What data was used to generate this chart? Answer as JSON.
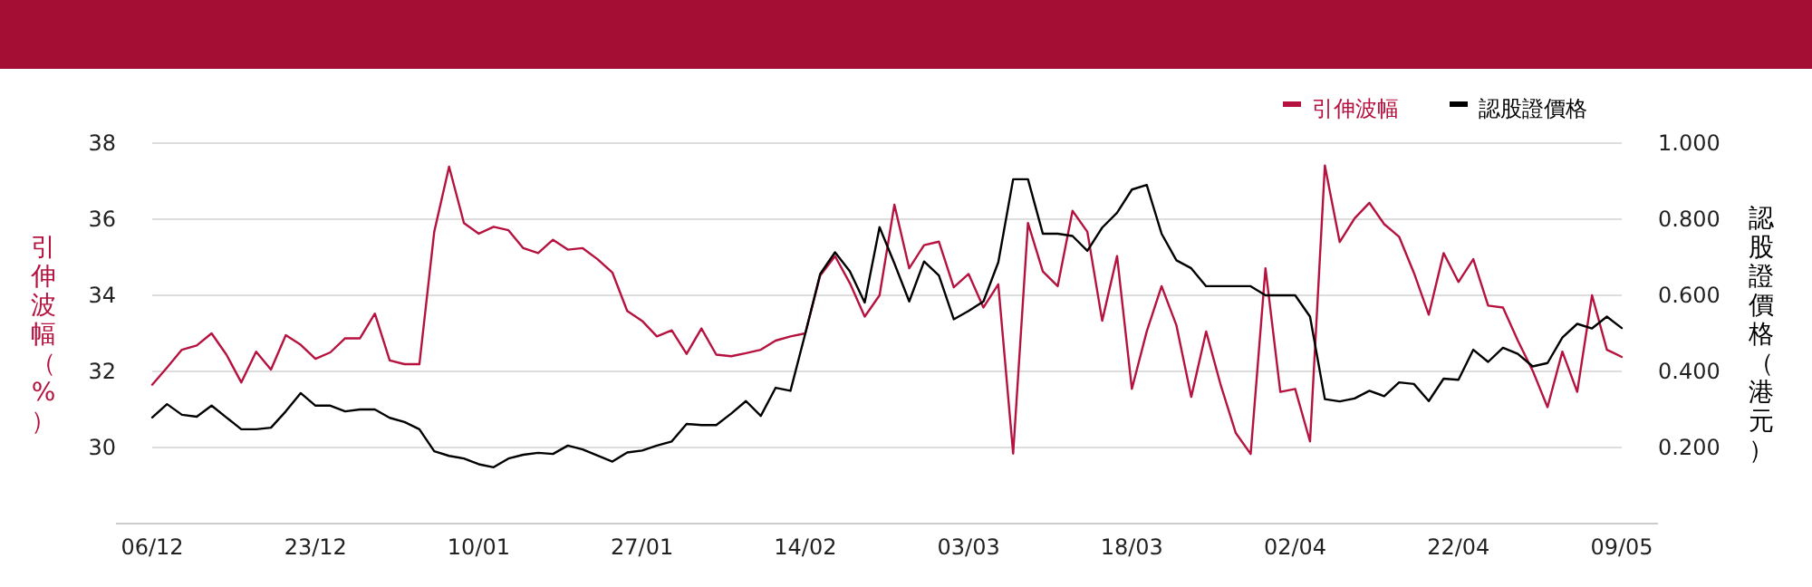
{
  "chart_data": {
    "type": "line",
    "ylabel": "引伸波幅（%）",
    "y2label": "認股證價格（港元）",
    "legend": "top right",
    "grid": "y",
    "categories": [
      "06/12",
      null,
      null,
      null,
      null,
      null,
      null,
      null,
      null,
      null,
      null,
      "23/12",
      null,
      null,
      null,
      null,
      null,
      null,
      null,
      null,
      null,
      null,
      "10/01",
      null,
      null,
      null,
      null,
      null,
      null,
      null,
      null,
      null,
      null,
      "27/01",
      null,
      null,
      null,
      null,
      null,
      null,
      null,
      null,
      null,
      null,
      "14/02",
      null,
      null,
      null,
      null,
      null,
      null,
      null,
      null,
      null,
      null,
      "03/03",
      null,
      null,
      null,
      null,
      null,
      null,
      null,
      null,
      null,
      null,
      "18/03",
      null,
      null,
      null,
      null,
      null,
      null,
      null,
      null,
      null,
      null,
      "02/04",
      null,
      null,
      null,
      null,
      null,
      null,
      null,
      null,
      null,
      null,
      "22/04",
      null,
      null,
      null,
      null,
      null,
      null,
      null,
      null,
      null,
      null,
      "09/05"
    ],
    "ylim": [
      28,
      38
    ],
    "yticks": [
      30,
      32,
      34,
      36,
      38
    ],
    "y2lim": [
      0,
      1.0
    ],
    "y2ticks": [
      {
        "value": 0.2,
        "label": "0.200"
      },
      {
        "value": 0.4,
        "label": "0.400"
      },
      {
        "value": 0.6,
        "label": "0.600"
      },
      {
        "value": 0.8,
        "label": "0.800"
      },
      {
        "value": 1.0,
        "label": "1.000"
      }
    ],
    "series": [
      {
        "name": "引伸波幅",
        "color": "#b5123f",
        "values": [
          31.65,
          32.1,
          32.57,
          32.68,
          33.0,
          32.44,
          31.71,
          32.52,
          32.05,
          32.95,
          32.7,
          32.33,
          32.5,
          32.87,
          32.87,
          33.52,
          32.29,
          32.19,
          32.19,
          35.67,
          37.38,
          35.9,
          35.62,
          35.8,
          35.71,
          35.24,
          35.11,
          35.46,
          35.2,
          35.24,
          34.95,
          34.6,
          33.59,
          33.33,
          32.92,
          33.08,
          32.46,
          33.13,
          32.44,
          32.4,
          32.48,
          32.57,
          32.81,
          32.92,
          33.0,
          34.52,
          35.03,
          34.32,
          33.44,
          34.0,
          36.38,
          34.71,
          35.32,
          35.41,
          34.21,
          34.56,
          33.68,
          34.29,
          29.84,
          35.9,
          34.63,
          34.24,
          36.22,
          35.67,
          33.33,
          35.03,
          31.54,
          33.05,
          34.24,
          33.21,
          31.33,
          33.05,
          31.62,
          30.38,
          29.83,
          34.71,
          31.46,
          31.54,
          30.16,
          37.41,
          35.4,
          36.02,
          36.43,
          35.87,
          35.54,
          34.59,
          33.49,
          35.11,
          34.35,
          34.95,
          33.73,
          33.68,
          32.81,
          32.02,
          31.06,
          32.52,
          31.46,
          34.0,
          32.57,
          32.38
        ]
      },
      {
        "name": "認股證價格",
        "color": "#000000",
        "axis": "y2",
        "values": [
          0.279,
          0.314,
          0.286,
          0.281,
          0.31,
          0.279,
          0.248,
          0.248,
          0.252,
          0.295,
          0.343,
          0.31,
          0.31,
          0.295,
          0.3,
          0.3,
          0.278,
          0.267,
          0.248,
          0.19,
          0.178,
          0.171,
          0.156,
          0.148,
          0.171,
          0.181,
          0.186,
          0.183,
          0.205,
          0.195,
          0.179,
          0.163,
          0.187,
          0.192,
          0.205,
          0.216,
          0.262,
          0.259,
          0.259,
          0.289,
          0.322,
          0.283,
          0.357,
          0.349,
          0.5,
          0.656,
          0.713,
          0.663,
          0.581,
          0.779,
          0.684,
          0.584,
          0.689,
          0.652,
          0.537,
          0.559,
          0.584,
          0.687,
          0.905,
          0.905,
          0.762,
          0.762,
          0.756,
          0.717,
          0.778,
          0.817,
          0.878,
          0.89,
          0.762,
          0.692,
          0.671,
          0.624,
          0.624,
          0.624,
          0.624,
          0.6,
          0.6,
          0.6,
          0.544,
          0.327,
          0.321,
          0.329,
          0.349,
          0.335,
          0.371,
          0.367,
          0.322,
          0.381,
          0.378,
          0.457,
          0.425,
          0.462,
          0.446,
          0.413,
          0.422,
          0.489,
          0.525,
          0.513,
          0.544,
          0.514
        ]
      }
    ]
  }
}
